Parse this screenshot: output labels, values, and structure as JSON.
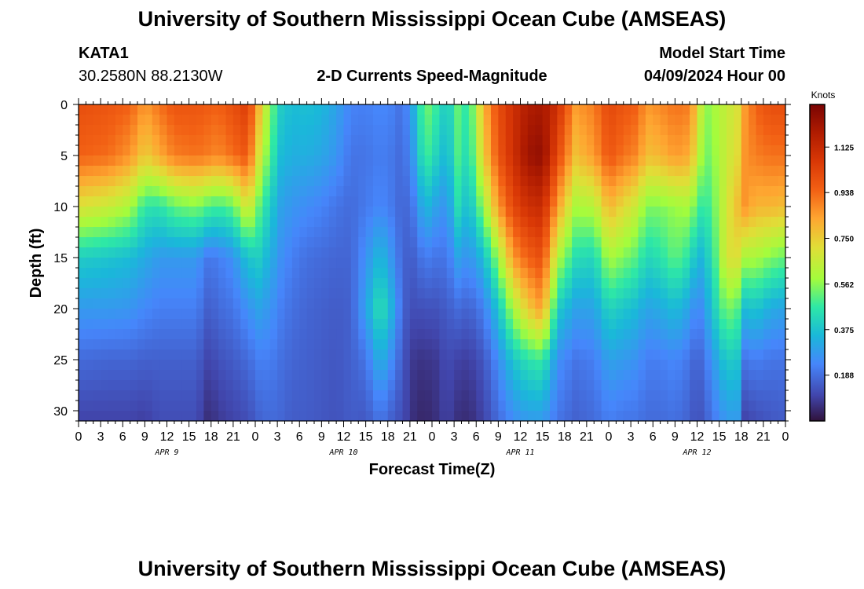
{
  "header": {
    "title": "University of Southern Mississippi Ocean Cube (AMSEAS)",
    "station": "KATA1",
    "location": "30.2580N  88.2130W",
    "subtitle": "2-D Currents Speed-Magnitude",
    "model_label": "Model Start Time",
    "model_time": "04/09/2024 Hour 00"
  },
  "footer": {
    "title": "University of Southern Mississippi Ocean Cube (AMSEAS)"
  },
  "chart_data": {
    "type": "heatmap",
    "title": "2-D Currents Speed-Magnitude",
    "xlabel": "Forecast Time(Z)",
    "ylabel": "Depth (ft)",
    "x_range_hours": [
      0,
      96
    ],
    "x_tick_step_hours": 3,
    "x_tick_labels": [
      "0",
      "3",
      "6",
      "9",
      "12",
      "15",
      "18",
      "21",
      "0",
      "3",
      "6",
      "9",
      "12",
      "15",
      "18",
      "21",
      "0",
      "3",
      "6",
      "9",
      "12",
      "15",
      "18",
      "21",
      "0",
      "3",
      "6",
      "9",
      "12",
      "15",
      "18",
      "21",
      "0"
    ],
    "day_labels": [
      {
        "label": "APR 9",
        "hour": 12
      },
      {
        "label": "APR 10",
        "hour": 36
      },
      {
        "label": "APR 11",
        "hour": 60
      },
      {
        "label": "APR 12",
        "hour": 84
      }
    ],
    "y_range_ft": [
      0,
      31
    ],
    "y_ticks": [
      0,
      5,
      10,
      15,
      20,
      25,
      30
    ],
    "colorbar": {
      "unit": "Knots",
      "range": [
        0,
        1.3
      ],
      "ticks": [
        "1.125",
        "0.938",
        "0.750",
        "0.562",
        "0.375",
        "0.188"
      ],
      "tick_values": [
        1.125,
        0.938,
        0.75,
        0.562,
        0.375,
        0.188
      ]
    },
    "profile_keyframes_hours": [
      0,
      4,
      7,
      9,
      11,
      13,
      16,
      17.7,
      19,
      21,
      23,
      24.5,
      26,
      27.5,
      29,
      31,
      33,
      35,
      37,
      39,
      41,
      43,
      44,
      45.7,
      47,
      48.5,
      50,
      51.5,
      53,
      55,
      57,
      59,
      61,
      63,
      65,
      67.5,
      70,
      72,
      74,
      76,
      77,
      79,
      81,
      83,
      84,
      85,
      86.5,
      88,
      89.5,
      90.5,
      92,
      94,
      96
    ],
    "depth_levels_ft": [
      0,
      5,
      10,
      15,
      20,
      25,
      31
    ],
    "speed_knots_profiles": [
      [
        1.0,
        0.95,
        0.7,
        0.4,
        0.28,
        0.18,
        0.1
      ],
      [
        0.98,
        0.93,
        0.66,
        0.38,
        0.28,
        0.17,
        0.1
      ],
      [
        0.95,
        0.86,
        0.6,
        0.36,
        0.27,
        0.17,
        0.1
      ],
      [
        0.85,
        0.75,
        0.46,
        0.32,
        0.24,
        0.16,
        0.09
      ],
      [
        0.92,
        0.82,
        0.45,
        0.28,
        0.22,
        0.16,
        0.12
      ],
      [
        0.98,
        0.9,
        0.52,
        0.28,
        0.22,
        0.16,
        0.12
      ],
      [
        0.98,
        0.92,
        0.55,
        0.28,
        0.22,
        0.16,
        0.12
      ],
      [
        0.96,
        0.9,
        0.5,
        0.2,
        0.15,
        0.1,
        0.05
      ],
      [
        0.95,
        0.88,
        0.48,
        0.22,
        0.18,
        0.13,
        0.08
      ],
      [
        1.0,
        0.93,
        0.52,
        0.26,
        0.2,
        0.15,
        0.1
      ],
      [
        1.05,
        0.98,
        0.7,
        0.38,
        0.26,
        0.18,
        0.12
      ],
      [
        0.8,
        0.7,
        0.52,
        0.4,
        0.3,
        0.22,
        0.16
      ],
      [
        0.55,
        0.5,
        0.4,
        0.33,
        0.27,
        0.22,
        0.18
      ],
      [
        0.4,
        0.36,
        0.3,
        0.26,
        0.22,
        0.19,
        0.17
      ],
      [
        0.36,
        0.33,
        0.27,
        0.22,
        0.19,
        0.17,
        0.15
      ],
      [
        0.37,
        0.33,
        0.25,
        0.19,
        0.17,
        0.16,
        0.15
      ],
      [
        0.35,
        0.31,
        0.23,
        0.18,
        0.16,
        0.15,
        0.14
      ],
      [
        0.3,
        0.27,
        0.2,
        0.17,
        0.15,
        0.14,
        0.13
      ],
      [
        0.23,
        0.2,
        0.18,
        0.17,
        0.16,
        0.16,
        0.15
      ],
      [
        0.22,
        0.2,
        0.21,
        0.26,
        0.3,
        0.2,
        0.14
      ],
      [
        0.24,
        0.22,
        0.24,
        0.36,
        0.46,
        0.34,
        0.2
      ],
      [
        0.22,
        0.2,
        0.2,
        0.24,
        0.3,
        0.22,
        0.14
      ],
      [
        0.18,
        0.17,
        0.16,
        0.16,
        0.16,
        0.14,
        0.12
      ],
      [
        0.35,
        0.3,
        0.22,
        0.16,
        0.12,
        0.07,
        0.05
      ],
      [
        0.55,
        0.5,
        0.36,
        0.22,
        0.13,
        0.07,
        0.04
      ],
      [
        0.48,
        0.42,
        0.3,
        0.2,
        0.13,
        0.08,
        0.06
      ],
      [
        0.38,
        0.34,
        0.26,
        0.2,
        0.15,
        0.12,
        0.1
      ],
      [
        0.52,
        0.5,
        0.44,
        0.3,
        0.18,
        0.1,
        0.06
      ],
      [
        0.45,
        0.42,
        0.35,
        0.26,
        0.16,
        0.09,
        0.05
      ],
      [
        0.8,
        0.75,
        0.58,
        0.36,
        0.22,
        0.14,
        0.1
      ],
      [
        1.0,
        0.98,
        0.85,
        0.58,
        0.38,
        0.25,
        0.18
      ],
      [
        1.1,
        1.1,
        1.02,
        0.85,
        0.6,
        0.38,
        0.25
      ],
      [
        1.18,
        1.22,
        1.1,
        0.95,
        0.75,
        0.45,
        0.28
      ],
      [
        1.2,
        1.25,
        1.12,
        1.0,
        0.85,
        0.48,
        0.28
      ],
      [
        1.1,
        1.02,
        0.85,
        0.62,
        0.4,
        0.26,
        0.2
      ],
      [
        0.85,
        0.78,
        0.6,
        0.44,
        0.3,
        0.2,
        0.16
      ],
      [
        0.9,
        0.85,
        0.62,
        0.42,
        0.3,
        0.22,
        0.18
      ],
      [
        1.02,
        0.98,
        0.8,
        0.6,
        0.42,
        0.3,
        0.22
      ],
      [
        0.98,
        0.92,
        0.72,
        0.55,
        0.38,
        0.28,
        0.2
      ],
      [
        0.95,
        0.88,
        0.65,
        0.5,
        0.35,
        0.26,
        0.2
      ],
      [
        0.85,
        0.78,
        0.55,
        0.42,
        0.3,
        0.22,
        0.18
      ],
      [
        0.88,
        0.8,
        0.55,
        0.45,
        0.32,
        0.22,
        0.18
      ],
      [
        0.92,
        0.85,
        0.58,
        0.52,
        0.36,
        0.24,
        0.19
      ],
      [
        0.9,
        0.82,
        0.6,
        0.45,
        0.3,
        0.2,
        0.16
      ],
      [
        0.75,
        0.68,
        0.5,
        0.34,
        0.22,
        0.15,
        0.12
      ],
      [
        0.55,
        0.52,
        0.45,
        0.36,
        0.28,
        0.2,
        0.15
      ],
      [
        0.6,
        0.58,
        0.55,
        0.5,
        0.42,
        0.3,
        0.22
      ],
      [
        0.65,
        0.66,
        0.68,
        0.7,
        0.55,
        0.4,
        0.28
      ],
      [
        0.7,
        0.72,
        0.78,
        0.7,
        0.5,
        0.38,
        0.28
      ],
      [
        0.85,
        0.86,
        0.86,
        0.6,
        0.36,
        0.2,
        0.1
      ],
      [
        0.95,
        0.9,
        0.8,
        0.6,
        0.38,
        0.22,
        0.12
      ],
      [
        1.0,
        0.92,
        0.8,
        0.55,
        0.32,
        0.2,
        0.14
      ],
      [
        1.0,
        0.92,
        0.78,
        0.52,
        0.3,
        0.2,
        0.15
      ]
    ]
  }
}
